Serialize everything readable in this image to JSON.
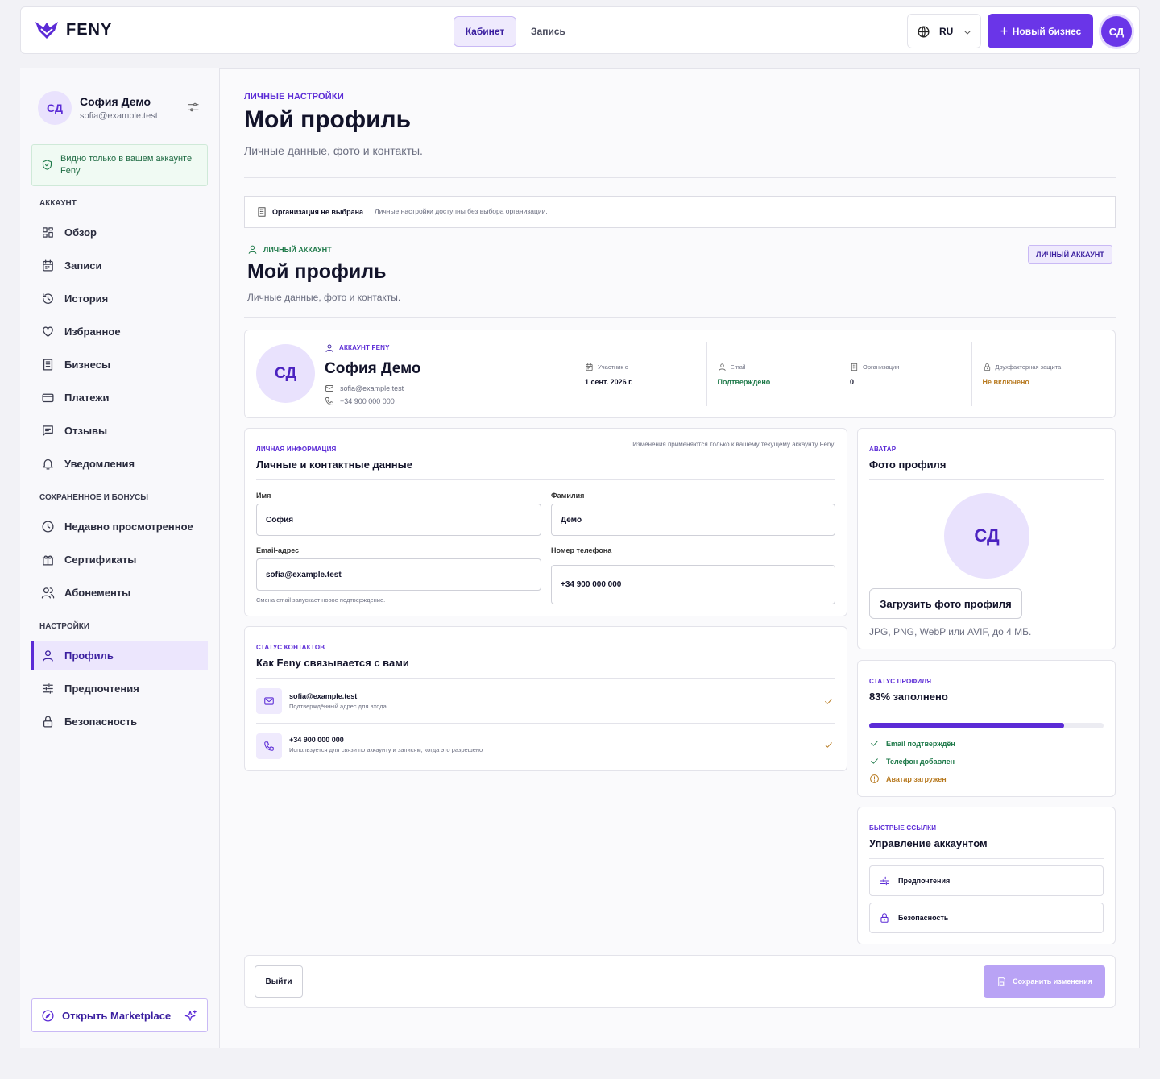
{
  "header": {
    "logo": "FENY",
    "nav": [
      "Кабинет",
      "Запись"
    ],
    "language": "RU",
    "new_business": "Новый бизнес",
    "avatar": "СД"
  },
  "sidebar": {
    "user": {
      "initials": "СД",
      "name": "София Демо",
      "email": "sofia@example.test"
    },
    "notice": "Видно только в вашем аккаунте Feny",
    "sections": [
      {
        "title": "АККАУНТ",
        "items": [
          "Обзор",
          "Записи",
          "История",
          "Избранное",
          "Бизнесы",
          "Платежи",
          "Отзывы",
          "Уведомления"
        ]
      },
      {
        "title": "СОХРАНЕННОЕ И БОНУСЫ",
        "items": [
          "Недавно просмотренное",
          "Сертификаты",
          "Абонементы"
        ]
      },
      {
        "title": "НАСТРОЙКИ",
        "items": [
          "Профиль",
          "Предпочтения",
          "Безопасность"
        ]
      }
    ],
    "marketplace": "Открыть Marketplace"
  },
  "page": {
    "eyebrow": "ЛИЧНЫЕ НАСТРОЙКИ",
    "title": "Мой профиль",
    "subtitle": "Личные данные, фото и контакты.",
    "org_banner": {
      "title": "Организация не выбрана",
      "text": "Личные настройки доступны без выбора организации."
    },
    "section": {
      "eyebrow": "ЛИЧНЫЙ АККАУНТ",
      "title": "Мой профиль",
      "subtitle": "Личные данные, фото и контакты.",
      "badge": "ЛИЧНЫЙ АККАУНТ"
    },
    "profile_card": {
      "initials": "СД",
      "eyebrow": "АККАУНТ FENY",
      "name": "София Демо",
      "email": "sofia@example.test",
      "phone": "+34 900 000 000",
      "stats": [
        {
          "label": "Участник с",
          "value": "1 сент. 2026 г.",
          "status": "neutral"
        },
        {
          "label": "Email",
          "value": "Подтверждено",
          "status": "ok"
        },
        {
          "label": "Организации",
          "value": "0",
          "status": "neutral"
        },
        {
          "label": "Двухфакторная защита",
          "value": "Не включено",
          "status": "warning"
        }
      ]
    },
    "personal_info": {
      "eyebrow": "ЛИЧНАЯ ИНФОРМАЦИЯ",
      "note": "Изменения применяются только к вашему текущему аккаунту Feny.",
      "title": "Личные и контактные данные",
      "fields": [
        {
          "label": "Имя",
          "value": "София"
        },
        {
          "label": "Фамилия",
          "value": "Демо"
        },
        {
          "label": "Email-адрес",
          "value": "sofia@example.test"
        },
        {
          "label": "Номер телефона",
          "value": "+34 900 000 000"
        }
      ],
      "email_hint": "Смена email запускает новое подтверждение."
    },
    "contacts": {
      "eyebrow": "СТАТУС КОНТАКТОВ",
      "title": "Как Feny связывается с вами",
      "items": [
        {
          "title": "sofia@example.test",
          "text": "Подтверждённый адрес для входа"
        },
        {
          "title": "+34 900 000 000",
          "text": "Используется для связи по аккаунту и записям, когда это разрешено"
        }
      ]
    },
    "avatar": {
      "eyebrow": "АВАТАР",
      "title": "Фото профиля",
      "initials": "СД",
      "button": "Загрузить фото профиля",
      "hint": "JPG, PNG, WebP или AVIF, до 4 МБ."
    },
    "profile_status": {
      "eyebrow": "СТАТУС ПРОФИЛЯ",
      "title": "83% заполнено",
      "progress": 83,
      "checks": [
        {
          "text": "Email подтверждён",
          "status": "ok"
        },
        {
          "text": "Телефон добавлен",
          "status": "ok"
        },
        {
          "text": "Аватар загружен",
          "status": "warning"
        }
      ]
    },
    "quick_links": {
      "eyebrow": "БЫСТРЫЕ ССЫЛКИ",
      "title": "Управление аккаунтом",
      "links": [
        "Предпочтения",
        "Безопасность"
      ]
    },
    "footer": {
      "logout": "Выйти",
      "save": "Сохранить изменения"
    }
  }
}
